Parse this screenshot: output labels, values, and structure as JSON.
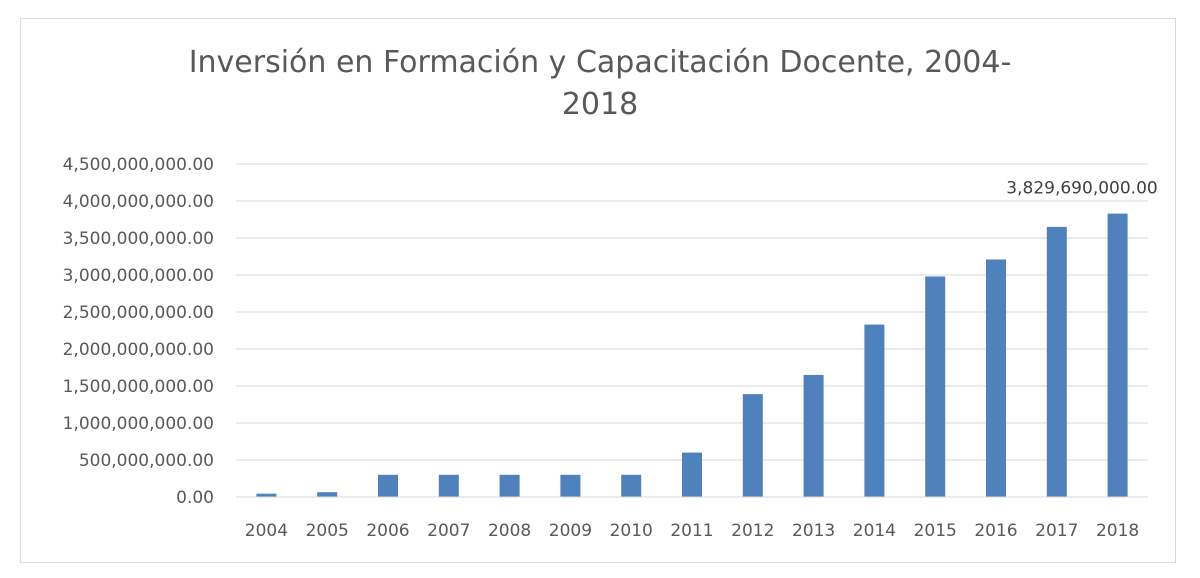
{
  "chart_data": {
    "type": "bar",
    "title_line1": "Inversión en Formación y Capacitación Docente, 2004-",
    "title_line2": "2018",
    "categories": [
      "2004",
      "2005",
      "2006",
      "2007",
      "2008",
      "2009",
      "2010",
      "2011",
      "2012",
      "2013",
      "2014",
      "2015",
      "2016",
      "2017",
      "2018"
    ],
    "values": [
      45000000,
      65000000,
      300000000,
      300000000,
      300000000,
      300000000,
      300000000,
      600000000,
      1390000000,
      1650000000,
      2330000000,
      2980000000,
      3210000000,
      3650000000,
      3829690000
    ],
    "ylim": [
      0,
      4500000000
    ],
    "y_ticks": [
      "0.00",
      "500,000,000.00",
      "1,000,000,000.00",
      "1,500,000,000.00",
      "2,000,000,000.00",
      "2,500,000,000.00",
      "3,000,000,000.00",
      "3,500,000,000.00",
      "4,000,000,000.00",
      "4,500,000,000.00"
    ],
    "y_tick_values": [
      0,
      500000000,
      1000000000,
      1500000000,
      2000000000,
      2500000000,
      3000000000,
      3500000000,
      4000000000,
      4500000000
    ],
    "data_label": {
      "index": 14,
      "text": "3,829,690,000.00"
    },
    "bar_color": "#4f81bd",
    "grid": true,
    "legend": "none"
  }
}
